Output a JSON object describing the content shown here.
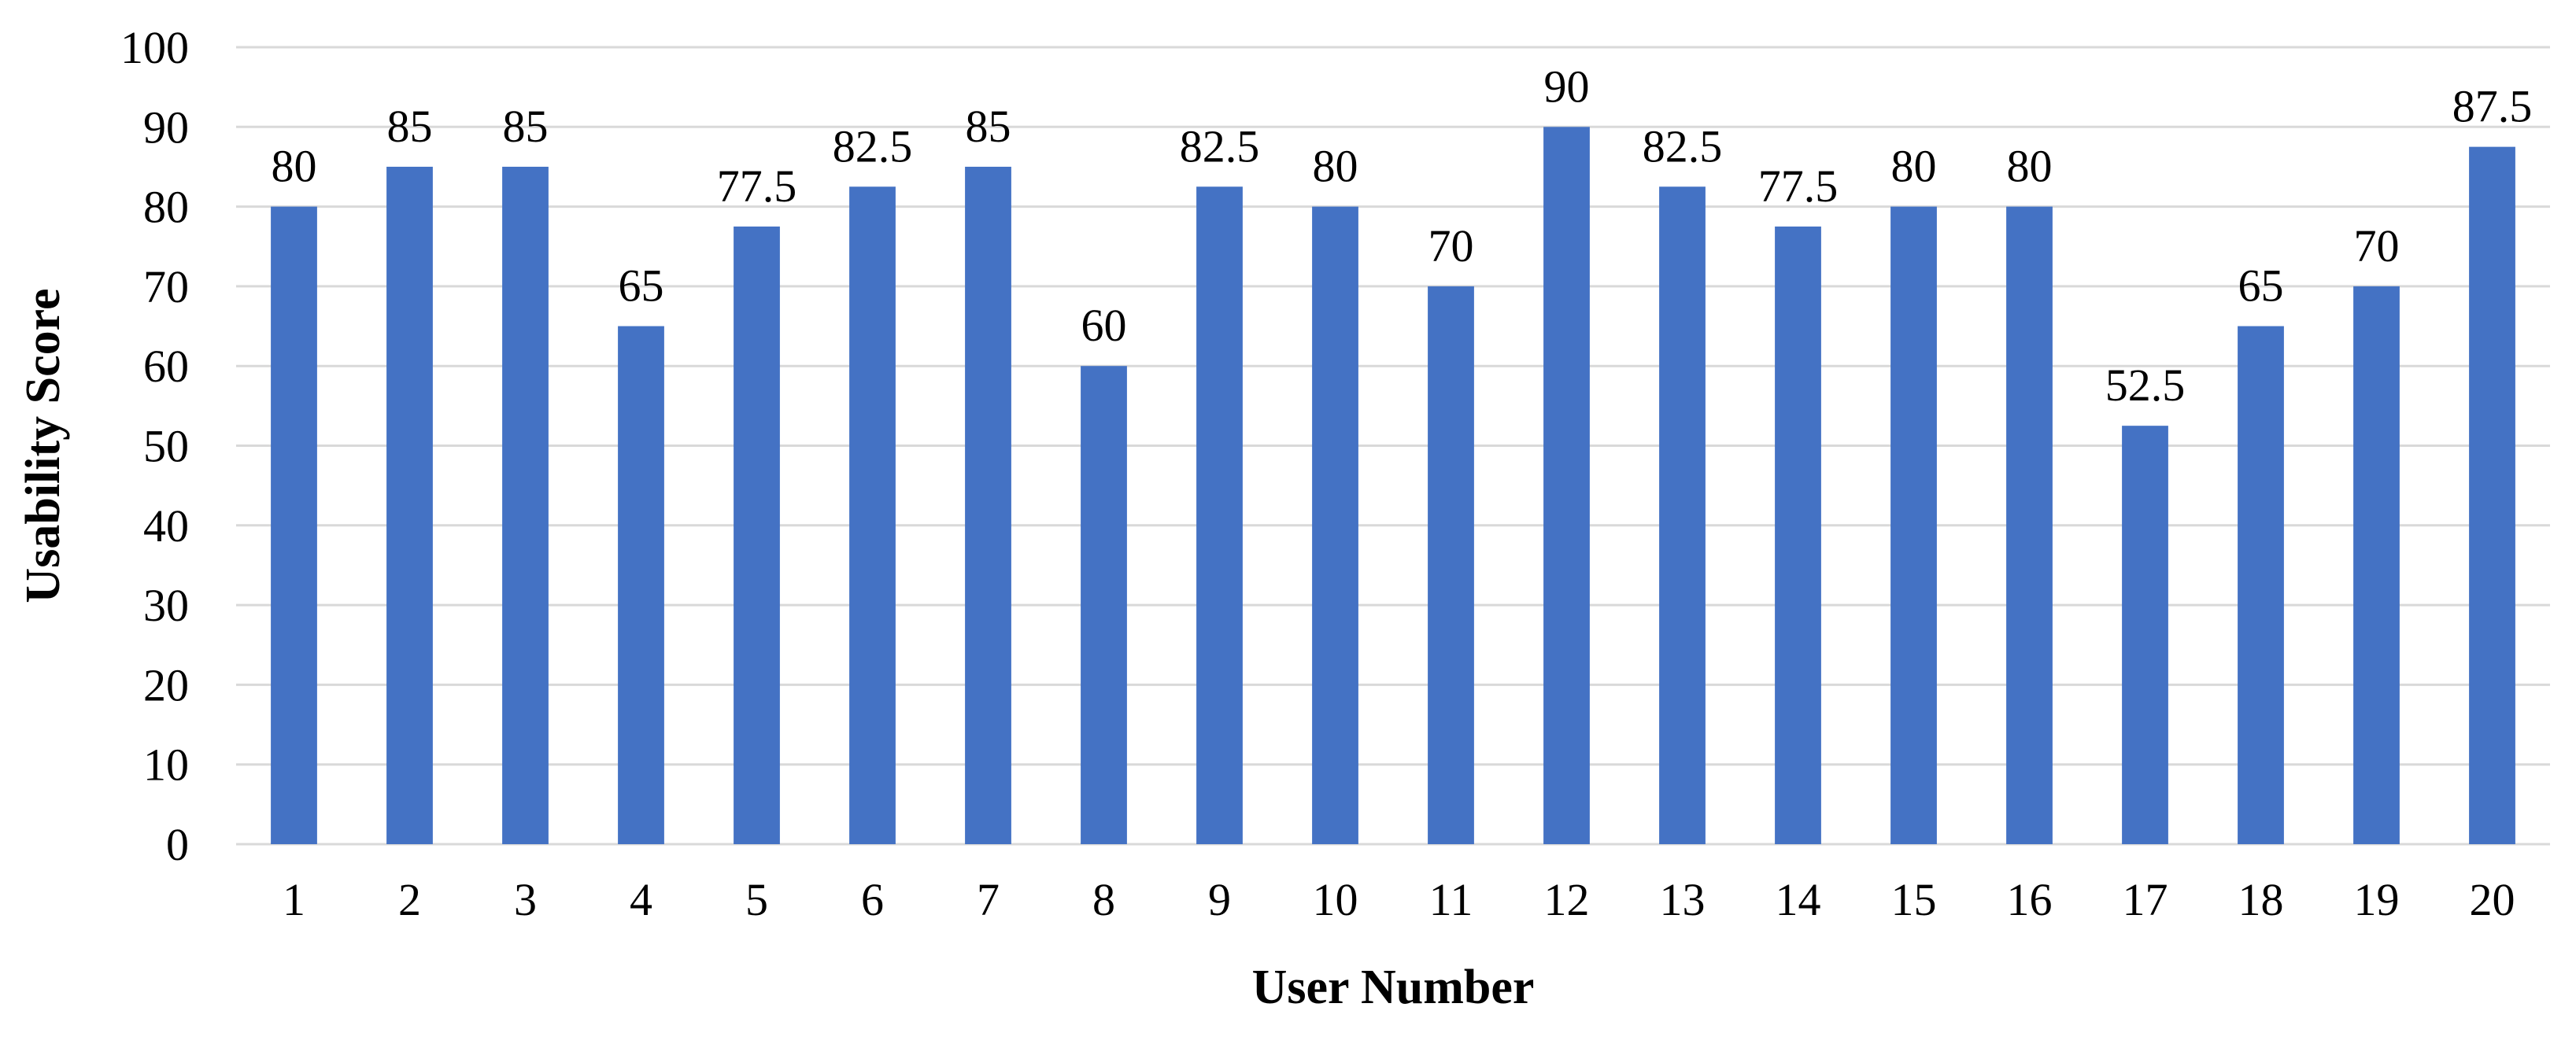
{
  "chart_data": {
    "type": "bar",
    "title": "",
    "xlabel": "User Number",
    "ylabel": "Usability Score",
    "categories": [
      "1",
      "2",
      "3",
      "4",
      "5",
      "6",
      "7",
      "8",
      "9",
      "10",
      "11",
      "12",
      "13",
      "14",
      "15",
      "16",
      "17",
      "18",
      "19",
      "20"
    ],
    "values": [
      80,
      85,
      85,
      65,
      77.5,
      82.5,
      85,
      60,
      82.5,
      80,
      70,
      90,
      82.5,
      77.5,
      80,
      80,
      52.5,
      65,
      70,
      87.5
    ],
    "data_labels": [
      "80",
      "85",
      "85",
      "65",
      "77.5",
      "82.5",
      "85",
      "60",
      "82.5",
      "80",
      "70",
      "90",
      "82.5",
      "77.5",
      "80",
      "80",
      "52.5",
      "65",
      "70",
      "87.5"
    ],
    "ylim": [
      0,
      100
    ],
    "yticks": [
      "0",
      "10",
      "20",
      "30",
      "40",
      "50",
      "60",
      "70",
      "80",
      "90",
      "100"
    ],
    "grid": true,
    "legend": "none",
    "bar_color": "#4472C4",
    "grid_color": "#d9d9d9"
  }
}
